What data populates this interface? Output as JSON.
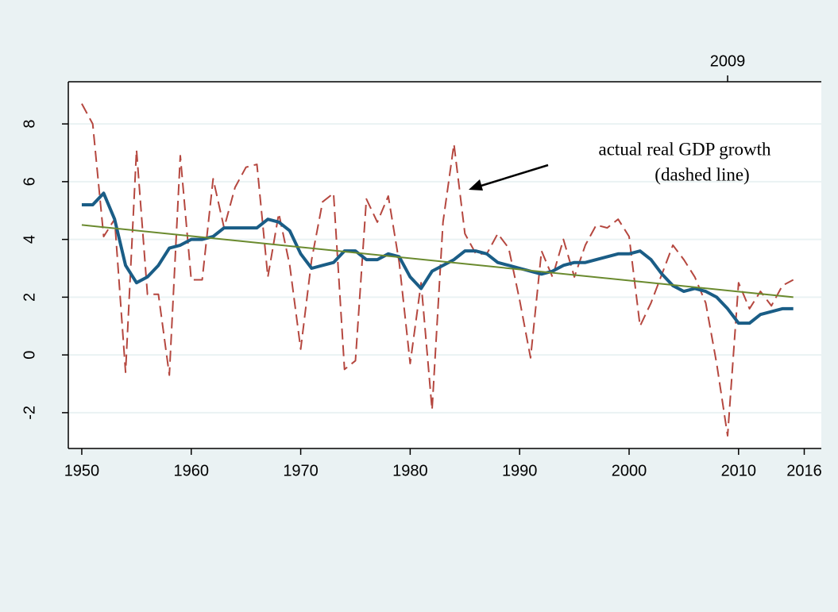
{
  "chart_data": {
    "type": "line",
    "x": [
      1950,
      1951,
      1952,
      1953,
      1954,
      1955,
      1956,
      1957,
      1958,
      1959,
      1960,
      1961,
      1962,
      1963,
      1964,
      1965,
      1966,
      1967,
      1968,
      1969,
      1970,
      1971,
      1972,
      1973,
      1974,
      1975,
      1976,
      1977,
      1978,
      1979,
      1980,
      1981,
      1982,
      1983,
      1984,
      1985,
      1986,
      1987,
      1988,
      1989,
      1990,
      1991,
      1992,
      1993,
      1994,
      1995,
      1996,
      1997,
      1998,
      1999,
      2000,
      2001,
      2002,
      2003,
      2004,
      2005,
      2006,
      2007,
      2008,
      2009,
      2010,
      2011,
      2012,
      2013,
      2014,
      2015,
      2016
    ],
    "series": [
      {
        "color": "#b5473f",
        "dash": true,
        "width": 2,
        "values": [
          8.7,
          8.0,
          4.1,
          4.7,
          -0.6,
          7.1,
          2.1,
          2.1,
          -0.7,
          6.9,
          2.6,
          2.6,
          6.1,
          4.4,
          5.8,
          6.5,
          6.6,
          2.7,
          4.9,
          3.1,
          0.2,
          3.3,
          5.3,
          5.6,
          -0.5,
          -0.2,
          5.4,
          4.6,
          5.5,
          3.2,
          -0.3,
          2.5,
          -1.9,
          4.6,
          7.3,
          4.2,
          3.5,
          3.5,
          4.2,
          3.7,
          1.9,
          -0.1,
          3.6,
          2.7,
          4.0,
          2.7,
          3.8,
          4.5,
          4.4,
          4.7,
          4.1,
          1.0,
          1.8,
          2.8,
          3.8,
          3.3,
          2.7,
          1.8,
          -0.3,
          -2.8,
          2.5,
          1.6,
          2.2,
          1.7,
          2.4,
          2.6,
          null
        ]
      },
      {
        "color": "#1a5d86",
        "dash": false,
        "width": 4,
        "values": [
          5.2,
          5.2,
          5.6,
          4.7,
          3.1,
          2.5,
          2.7,
          3.1,
          3.7,
          3.8,
          4.0,
          4.0,
          4.1,
          4.4,
          4.4,
          4.4,
          4.4,
          4.7,
          4.6,
          4.3,
          3.5,
          3.0,
          3.1,
          3.2,
          3.6,
          3.6,
          3.3,
          3.3,
          3.5,
          3.4,
          2.7,
          2.3,
          2.9,
          3.1,
          3.3,
          3.6,
          3.6,
          3.5,
          3.2,
          3.1,
          3.0,
          2.9,
          2.8,
          2.9,
          3.1,
          3.2,
          3.2,
          3.3,
          3.4,
          3.5,
          3.5,
          3.6,
          3.3,
          2.8,
          2.4,
          2.2,
          2.3,
          2.2,
          2.0,
          1.6,
          1.1,
          1.1,
          1.4,
          1.5,
          1.6,
          1.6,
          null
        ]
      },
      {
        "color": "#6a8a2e",
        "dash": false,
        "width": 2,
        "x": [
          1950,
          2015
        ],
        "values": [
          4.5,
          2.0
        ]
      }
    ],
    "xlim": [
      1948.77,
      2017.56
    ],
    "xticks": [
      1950,
      1960,
      1970,
      1980,
      1990,
      2000,
      2010,
      2016
    ],
    "x2ticks": [
      2009
    ],
    "ylim": [
      -3.24,
      9.46
    ],
    "yticks": [
      -2,
      0,
      2,
      4,
      6,
      8
    ],
    "grid": true,
    "annotations": [
      "actual real GDP growth",
      "(dashed line)"
    ]
  }
}
